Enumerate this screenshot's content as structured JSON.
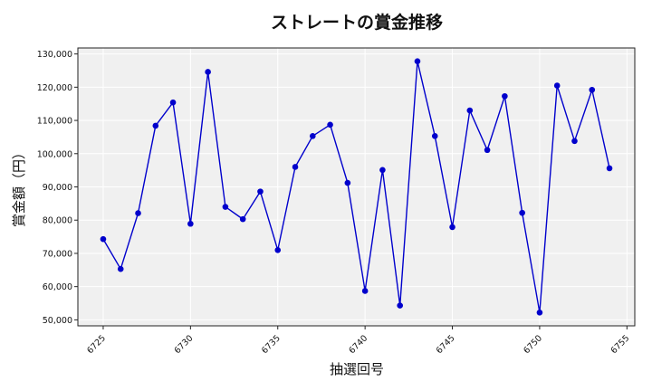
{
  "chart_data": {
    "type": "line",
    "title": "ストレートの賞金推移",
    "xlabel": "抽選回号",
    "ylabel": "賞金額（円）",
    "x": [
      6725,
      6726,
      6727,
      6728,
      6729,
      6730,
      6731,
      6732,
      6733,
      6734,
      6735,
      6736,
      6737,
      6738,
      6739,
      6740,
      6741,
      6742,
      6743,
      6744,
      6745,
      6746,
      6747,
      6748,
      6749,
      6750,
      6751,
      6752,
      6753,
      6754
    ],
    "series": [
      {
        "values": [
          74300,
          65300,
          82100,
          108400,
          115400,
          78900,
          124600,
          84000,
          80300,
          88600,
          71000,
          96000,
          105300,
          108700,
          91200,
          58700,
          95100,
          54300,
          127800,
          105300,
          77900,
          113000,
          101100,
          117300,
          82200,
          52200,
          120500,
          103800,
          119200,
          95600
        ],
        "color": "#0000cc"
      }
    ],
    "xlim": [
      6723.55,
      6755.45
    ],
    "ylim": [
      48200,
      131800
    ],
    "xticks": [
      6725,
      6730,
      6735,
      6740,
      6745,
      6750,
      6755
    ],
    "yticks": [
      50000,
      60000,
      70000,
      80000,
      90000,
      100000,
      110000,
      120000,
      130000
    ],
    "ytick_labels": [
      "50,000",
      "60,000",
      "70,000",
      "80,000",
      "90,000",
      "100,000",
      "110,000",
      "120,000",
      "130,000"
    ],
    "grid": true,
    "background": "#f0f0f0"
  }
}
